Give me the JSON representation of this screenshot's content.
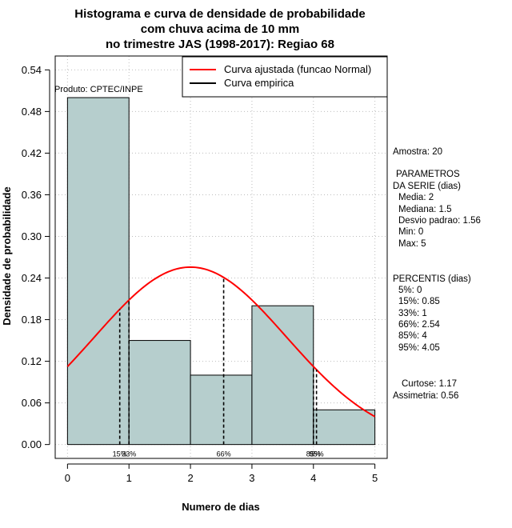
{
  "chart_data": {
    "type": "bar",
    "title_lines": [
      "Histograma e curva de densidade de probabilidade",
      "com chuva acima de 10 mm",
      "no trimestre JAS (1998-2017): Regiao 68"
    ],
    "xlabel": "Numero de dias",
    "ylabel": "Densidade de probabilidade",
    "xlim": [
      -0.2,
      5.2
    ],
    "ylim": [
      -0.02,
      0.56
    ],
    "x_ticks": [
      0,
      1,
      2,
      3,
      4,
      5
    ],
    "y_ticks": [
      0.0,
      0.06,
      0.12,
      0.18,
      0.24,
      0.3,
      0.36,
      0.42,
      0.48,
      0.54
    ],
    "y_tick_labels": [
      "0.00",
      "0.06",
      "0.12",
      "0.18",
      "0.24",
      "0.30",
      "0.36",
      "0.42",
      "0.48",
      "0.54"
    ],
    "bins": [
      {
        "from": 0,
        "to": 1,
        "density": 0.5
      },
      {
        "from": 1,
        "to": 2,
        "density": 0.15
      },
      {
        "from": 2,
        "to": 3,
        "density": 0.1
      },
      {
        "from": 3,
        "to": 4,
        "density": 0.2
      },
      {
        "from": 4,
        "to": 5,
        "density": 0.05
      }
    ],
    "normal_fit": {
      "mean": 2,
      "sd": 1.56,
      "x_from": 0,
      "x_to": 5
    },
    "percentile_lines": [
      {
        "x": 0.85,
        "label": "15%"
      },
      {
        "x": 1,
        "label": "33%"
      },
      {
        "x": 2.54,
        "label": "66%"
      },
      {
        "x": 4,
        "label": "85%"
      },
      {
        "x": 4.05,
        "label": "95%"
      }
    ],
    "legend": [
      {
        "label": "Curva ajustada (funcao Normal)",
        "color": "#ff0000"
      },
      {
        "label": "Curva empirica",
        "color": "#000000"
      }
    ],
    "legend_position": "top-right",
    "annotation_produto": "Produto: CPTEC/INPE",
    "colors": {
      "bar_fill": "#b6cecd",
      "fit_curve": "#ff0000",
      "percentile_line": "#000000",
      "grid": "#bdbdbd"
    },
    "grid": true
  },
  "stats": {
    "amostra": "Amostra: 20",
    "parametros_title_1": "PARAMETROS",
    "parametros_title_2": "DA SERIE (dias)",
    "media": "Media: 2",
    "mediana": "Mediana: 1.5",
    "desvio": "Desvio padrao: 1.56",
    "min": "Min: 0",
    "max": "Max: 5",
    "percentis_title": "PERCENTIS (dias)",
    "p5": "5%: 0",
    "p15": "15%: 0.85",
    "p33": "33%: 1",
    "p66": "66%: 2.54",
    "p85": "85%: 4",
    "p95": "95%: 4.05",
    "curtose": "Curtose: 1.17",
    "assimetria": "Assimetria: 0.56"
  }
}
